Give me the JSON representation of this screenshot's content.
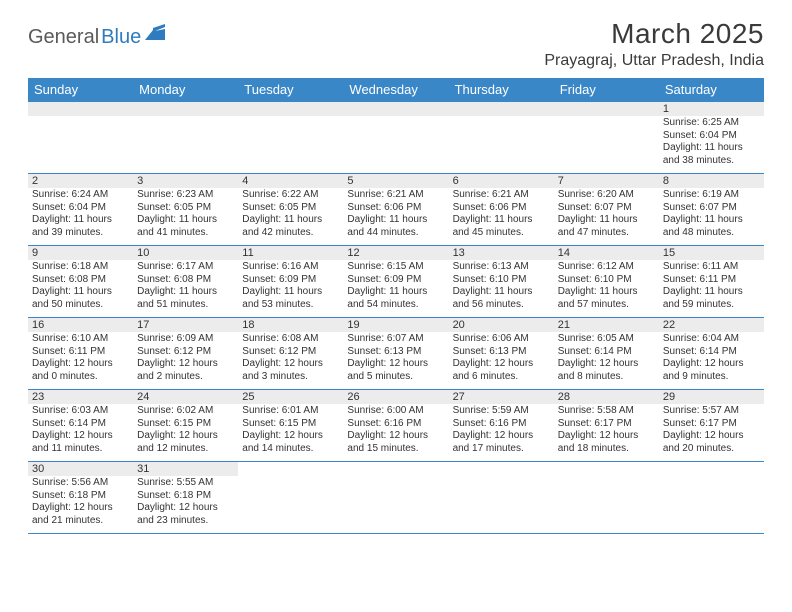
{
  "logo": {
    "general": "General",
    "blue": "Blue"
  },
  "header": {
    "title": "March 2025",
    "location": "Prayagraj, Uttar Pradesh, India"
  },
  "colors": {
    "header_bg": "#3a87c8",
    "header_text": "#ffffff",
    "daynum_bg": "#ececec",
    "border": "#3a87c8",
    "logo_gray": "#5a5a5a",
    "logo_blue": "#2f7bbf"
  },
  "weekdays": [
    "Sunday",
    "Monday",
    "Tuesday",
    "Wednesday",
    "Thursday",
    "Friday",
    "Saturday"
  ],
  "weeks": [
    [
      {
        "blank": true
      },
      {
        "blank": true
      },
      {
        "blank": true
      },
      {
        "blank": true
      },
      {
        "blank": true
      },
      {
        "blank": true
      },
      {
        "day": "1",
        "sunrise": "Sunrise: 6:25 AM",
        "sunset": "Sunset: 6:04 PM",
        "daylight": "Daylight: 11 hours and 38 minutes."
      }
    ],
    [
      {
        "day": "2",
        "sunrise": "Sunrise: 6:24 AM",
        "sunset": "Sunset: 6:04 PM",
        "daylight": "Daylight: 11 hours and 39 minutes."
      },
      {
        "day": "3",
        "sunrise": "Sunrise: 6:23 AM",
        "sunset": "Sunset: 6:05 PM",
        "daylight": "Daylight: 11 hours and 41 minutes."
      },
      {
        "day": "4",
        "sunrise": "Sunrise: 6:22 AM",
        "sunset": "Sunset: 6:05 PM",
        "daylight": "Daylight: 11 hours and 42 minutes."
      },
      {
        "day": "5",
        "sunrise": "Sunrise: 6:21 AM",
        "sunset": "Sunset: 6:06 PM",
        "daylight": "Daylight: 11 hours and 44 minutes."
      },
      {
        "day": "6",
        "sunrise": "Sunrise: 6:21 AM",
        "sunset": "Sunset: 6:06 PM",
        "daylight": "Daylight: 11 hours and 45 minutes."
      },
      {
        "day": "7",
        "sunrise": "Sunrise: 6:20 AM",
        "sunset": "Sunset: 6:07 PM",
        "daylight": "Daylight: 11 hours and 47 minutes."
      },
      {
        "day": "8",
        "sunrise": "Sunrise: 6:19 AM",
        "sunset": "Sunset: 6:07 PM",
        "daylight": "Daylight: 11 hours and 48 minutes."
      }
    ],
    [
      {
        "day": "9",
        "sunrise": "Sunrise: 6:18 AM",
        "sunset": "Sunset: 6:08 PM",
        "daylight": "Daylight: 11 hours and 50 minutes."
      },
      {
        "day": "10",
        "sunrise": "Sunrise: 6:17 AM",
        "sunset": "Sunset: 6:08 PM",
        "daylight": "Daylight: 11 hours and 51 minutes."
      },
      {
        "day": "11",
        "sunrise": "Sunrise: 6:16 AM",
        "sunset": "Sunset: 6:09 PM",
        "daylight": "Daylight: 11 hours and 53 minutes."
      },
      {
        "day": "12",
        "sunrise": "Sunrise: 6:15 AM",
        "sunset": "Sunset: 6:09 PM",
        "daylight": "Daylight: 11 hours and 54 minutes."
      },
      {
        "day": "13",
        "sunrise": "Sunrise: 6:13 AM",
        "sunset": "Sunset: 6:10 PM",
        "daylight": "Daylight: 11 hours and 56 minutes."
      },
      {
        "day": "14",
        "sunrise": "Sunrise: 6:12 AM",
        "sunset": "Sunset: 6:10 PM",
        "daylight": "Daylight: 11 hours and 57 minutes."
      },
      {
        "day": "15",
        "sunrise": "Sunrise: 6:11 AM",
        "sunset": "Sunset: 6:11 PM",
        "daylight": "Daylight: 11 hours and 59 minutes."
      }
    ],
    [
      {
        "day": "16",
        "sunrise": "Sunrise: 6:10 AM",
        "sunset": "Sunset: 6:11 PM",
        "daylight": "Daylight: 12 hours and 0 minutes."
      },
      {
        "day": "17",
        "sunrise": "Sunrise: 6:09 AM",
        "sunset": "Sunset: 6:12 PM",
        "daylight": "Daylight: 12 hours and 2 minutes."
      },
      {
        "day": "18",
        "sunrise": "Sunrise: 6:08 AM",
        "sunset": "Sunset: 6:12 PM",
        "daylight": "Daylight: 12 hours and 3 minutes."
      },
      {
        "day": "19",
        "sunrise": "Sunrise: 6:07 AM",
        "sunset": "Sunset: 6:13 PM",
        "daylight": "Daylight: 12 hours and 5 minutes."
      },
      {
        "day": "20",
        "sunrise": "Sunrise: 6:06 AM",
        "sunset": "Sunset: 6:13 PM",
        "daylight": "Daylight: 12 hours and 6 minutes."
      },
      {
        "day": "21",
        "sunrise": "Sunrise: 6:05 AM",
        "sunset": "Sunset: 6:14 PM",
        "daylight": "Daylight: 12 hours and 8 minutes."
      },
      {
        "day": "22",
        "sunrise": "Sunrise: 6:04 AM",
        "sunset": "Sunset: 6:14 PM",
        "daylight": "Daylight: 12 hours and 9 minutes."
      }
    ],
    [
      {
        "day": "23",
        "sunrise": "Sunrise: 6:03 AM",
        "sunset": "Sunset: 6:14 PM",
        "daylight": "Daylight: 12 hours and 11 minutes."
      },
      {
        "day": "24",
        "sunrise": "Sunrise: 6:02 AM",
        "sunset": "Sunset: 6:15 PM",
        "daylight": "Daylight: 12 hours and 12 minutes."
      },
      {
        "day": "25",
        "sunrise": "Sunrise: 6:01 AM",
        "sunset": "Sunset: 6:15 PM",
        "daylight": "Daylight: 12 hours and 14 minutes."
      },
      {
        "day": "26",
        "sunrise": "Sunrise: 6:00 AM",
        "sunset": "Sunset: 6:16 PM",
        "daylight": "Daylight: 12 hours and 15 minutes."
      },
      {
        "day": "27",
        "sunrise": "Sunrise: 5:59 AM",
        "sunset": "Sunset: 6:16 PM",
        "daylight": "Daylight: 12 hours and 17 minutes."
      },
      {
        "day": "28",
        "sunrise": "Sunrise: 5:58 AM",
        "sunset": "Sunset: 6:17 PM",
        "daylight": "Daylight: 12 hours and 18 minutes."
      },
      {
        "day": "29",
        "sunrise": "Sunrise: 5:57 AM",
        "sunset": "Sunset: 6:17 PM",
        "daylight": "Daylight: 12 hours and 20 minutes."
      }
    ],
    [
      {
        "day": "30",
        "sunrise": "Sunrise: 5:56 AM",
        "sunset": "Sunset: 6:18 PM",
        "daylight": "Daylight: 12 hours and 21 minutes."
      },
      {
        "day": "31",
        "sunrise": "Sunrise: 5:55 AM",
        "sunset": "Sunset: 6:18 PM",
        "daylight": "Daylight: 12 hours and 23 minutes."
      },
      {
        "trailing": true
      },
      {
        "trailing": true
      },
      {
        "trailing": true
      },
      {
        "trailing": true
      },
      {
        "trailing": true
      }
    ]
  ]
}
